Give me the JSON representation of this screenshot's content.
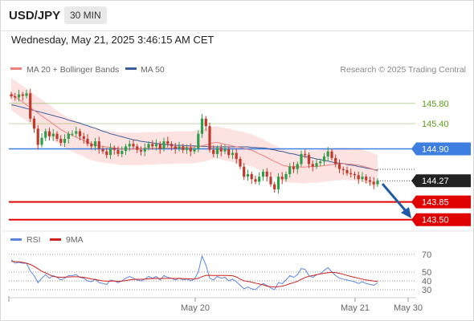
{
  "header": {
    "symbol": "USD/JPY",
    "timeframe": "30 MIN",
    "datetime": "Wednesday, May 21, 2025 3:46:15 AM CET"
  },
  "legend": {
    "ma20": "MA 20 + Bollinger Bands",
    "ma50": "MA 50",
    "credit": "Research © 2025 Trading Central",
    "rsi": "RSI",
    "ma9": "9MA"
  },
  "colors": {
    "ma20": "#f08080",
    "ma50": "#3b5b9b",
    "bollinger_fill": "#fde2e2",
    "bull": "#2e9e4a",
    "bear": "#c0392b",
    "resistance_green": "#5a9e1a",
    "pivot_blue": "#3d7ee0",
    "support_red": "#e00000",
    "current_price": "#222222",
    "rsi": "#5b86e0",
    "rsi_ma": "#d02020"
  },
  "chart_data": [
    {
      "type": "candlestick",
      "ylim": [
        143.4,
        146.1
      ],
      "levels": [
        {
          "value": 145.8,
          "label": "145.80",
          "kind": "resistance"
        },
        {
          "value": 145.4,
          "label": "145.40",
          "kind": "resistance"
        },
        {
          "value": 144.9,
          "label": "144.90",
          "kind": "pivot"
        },
        {
          "value": 144.27,
          "label": "144.27",
          "kind": "current"
        },
        {
          "value": 143.85,
          "label": "143.85",
          "kind": "support"
        },
        {
          "value": 143.5,
          "label": "143.50",
          "kind": "support"
        }
      ],
      "x_ticks": [
        "May 20",
        "May 21",
        "May 30"
      ],
      "close": [
        145.94,
        145.92,
        145.98,
        145.95,
        146.0,
        145.5,
        145.3,
        144.98,
        145.12,
        145.25,
        145.15,
        145.2,
        145.1,
        145.02,
        145.1,
        145.2,
        145.2,
        145.25,
        145.15,
        145.1,
        145.0,
        144.95,
        145.05,
        144.9,
        144.85,
        144.78,
        144.92,
        144.88,
        144.8,
        144.86,
        144.95,
        145.0,
        144.95,
        144.88,
        144.85,
        144.92,
        145.0,
        144.95,
        145.0,
        144.9,
        145.05,
        145.0,
        144.95,
        144.9,
        144.95,
        144.88,
        144.92,
        144.85,
        144.9,
        145.2,
        145.5,
        145.35,
        144.88,
        144.8,
        144.92,
        144.85,
        144.9,
        144.78,
        144.82,
        144.7,
        144.55,
        144.35,
        144.4,
        144.3,
        144.25,
        144.35,
        144.45,
        144.35,
        144.2,
        144.1,
        144.35,
        144.3,
        144.4,
        144.55,
        144.5,
        144.6,
        144.8,
        144.78,
        144.6,
        144.55,
        144.62,
        144.65,
        144.75,
        144.85,
        144.72,
        144.6,
        144.5,
        144.48,
        144.42,
        144.4,
        144.38,
        144.3,
        144.35,
        144.28,
        144.25,
        144.2,
        144.27
      ],
      "ma20": [
        145.99,
        145.93,
        145.88,
        145.83,
        145.77,
        145.72,
        145.66,
        145.61,
        145.55,
        145.5,
        145.45,
        145.39,
        145.34,
        145.28,
        145.24,
        145.2,
        145.17,
        145.13,
        145.1,
        145.07,
        145.03,
        145.0,
        144.98,
        144.96,
        144.95,
        144.94,
        144.93,
        144.92,
        144.91,
        144.9,
        144.9,
        144.9,
        144.9,
        144.9,
        144.9,
        144.91,
        144.91,
        144.91,
        144.91,
        144.92,
        144.92,
        144.92,
        144.92,
        144.93,
        144.93,
        144.93,
        144.93,
        144.93,
        144.94,
        144.95,
        144.96,
        144.98,
        145.0,
        145.02,
        145.03,
        145.01,
        144.99,
        144.98,
        144.96,
        144.94,
        144.93,
        144.91,
        144.89,
        144.87,
        144.84,
        144.8,
        144.77,
        144.73,
        144.69,
        144.65,
        144.62,
        144.58,
        144.56,
        144.55,
        144.55,
        144.55,
        144.54,
        144.54,
        144.55,
        144.55,
        144.55,
        144.56,
        144.57,
        144.58,
        144.59,
        144.6,
        144.6,
        144.61,
        144.6,
        144.6,
        144.59,
        144.58,
        144.56,
        144.54,
        144.52,
        144.49,
        144.46
      ],
      "ma50": [
        145.77,
        145.76,
        145.74,
        145.72,
        145.7,
        145.68,
        145.66,
        145.64,
        145.62,
        145.6,
        145.58,
        145.56,
        145.54,
        145.52,
        145.5,
        145.47,
        145.45,
        145.43,
        145.41,
        145.38,
        145.36,
        145.33,
        145.31,
        145.28,
        145.25,
        145.23,
        145.2,
        145.18,
        145.16,
        145.14,
        145.12,
        145.1,
        145.08,
        145.07,
        145.05,
        145.04,
        145.03,
        145.02,
        145.01,
        145.0,
        144.99,
        144.98,
        144.98,
        144.97,
        144.97,
        144.97,
        144.96,
        144.96,
        144.96,
        144.95,
        144.95,
        144.95,
        144.94,
        144.94,
        144.94,
        144.94,
        144.94,
        144.94,
        144.94,
        144.94,
        144.94,
        144.94,
        144.94,
        144.93,
        144.93,
        144.92,
        144.92,
        144.91,
        144.89,
        144.88,
        144.86,
        144.85,
        144.83,
        144.81,
        144.8,
        144.78,
        144.76,
        144.75,
        144.73,
        144.72,
        144.7,
        144.69,
        144.67,
        144.66,
        144.64,
        144.63,
        144.62,
        144.61,
        144.59,
        144.58,
        144.57,
        144.55,
        144.54,
        144.52,
        144.51,
        144.49,
        144.48
      ]
    },
    {
      "type": "line",
      "title": "RSI",
      "ylim": [
        20,
        80
      ],
      "y_ticks": [
        70,
        50,
        40,
        30
      ],
      "series": [
        {
          "name": "RSI",
          "values": [
            64.0,
            60.0,
            61.0,
            60.0,
            60.0,
            51.0,
            46.0,
            38.0,
            43.0,
            47.0,
            43.0,
            46.0,
            44.0,
            41.0,
            43.0,
            46.0,
            46.0,
            47.0,
            44.0,
            43.0,
            40.0,
            39.0,
            42.0,
            38.0,
            37.0,
            36.0,
            41.0,
            40.0,
            38.0,
            40.0,
            43.0,
            45.0,
            43.0,
            41.0,
            40.0,
            42.0,
            45.0,
            43.0,
            45.0,
            41.0,
            46.0,
            44.0,
            43.0,
            41.0,
            43.0,
            41.0,
            42.0,
            40.0,
            42.0,
            50.0,
            68.0,
            58.0,
            43.0,
            41.0,
            45.0,
            43.0,
            44.0,
            40.0,
            42.0,
            39.0,
            35.0,
            31.0,
            33.0,
            31.0,
            30.0,
            34.0,
            37.0,
            35.0,
            32.0,
            30.0,
            38.0,
            37.0,
            41.0,
            46.0,
            44.0,
            47.0,
            54.0,
            53.0,
            46.0,
            44.0,
            47.0,
            48.0,
            52.0,
            55.0,
            50.0,
            46.0,
            43.0,
            42.0,
            41.0,
            40.0,
            39.0,
            37.0,
            39.0,
            37.0,
            36.0,
            35.0,
            38.0
          ]
        },
        {
          "name": "9MA",
          "values": [
            62.0,
            61.8,
            61.6,
            61.0,
            60.0,
            58.5,
            56.5,
            53.5,
            51.0,
            49.0,
            47.0,
            45.0,
            44.5,
            44.0,
            44.2,
            44.5,
            44.6,
            44.6,
            44.5,
            44.0,
            43.2,
            42.2,
            41.5,
            40.8,
            40.0,
            39.6,
            39.8,
            39.8,
            39.5,
            39.8,
            40.4,
            41.2,
            41.6,
            41.8,
            41.8,
            42.0,
            42.4,
            42.6,
            42.8,
            42.6,
            42.8,
            42.8,
            42.8,
            42.6,
            42.8,
            42.6,
            42.4,
            42.2,
            42.0,
            42.8,
            44.8,
            46.2,
            46.4,
            46.2,
            46.2,
            46.2,
            46.2,
            46.0,
            45.8,
            44.5,
            42.0,
            40.0,
            39.5,
            38.5,
            37.5,
            36.5,
            35.5,
            34.0,
            33.5,
            33.0,
            33.5,
            34.0,
            35.2,
            36.8,
            38.0,
            39.4,
            41.8,
            43.8,
            45.2,
            46.0,
            47.0,
            47.8,
            48.6,
            49.4,
            49.6,
            49.4,
            48.5,
            47.5,
            46.2,
            45.0,
            44.0,
            43.0,
            42.0,
            41.0,
            40.5,
            39.8,
            39.5
          ]
        }
      ]
    }
  ]
}
